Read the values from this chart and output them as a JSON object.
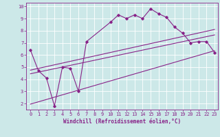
{
  "xlabel": "Windchill (Refroidissement éolien,°C)",
  "bg_color": "#cce8e8",
  "plot_bg_color": "#cce8e8",
  "line_color": "#882288",
  "grid_color": "#aadddd",
  "xlim_min": -0.5,
  "xlim_max": 23.4,
  "ylim_min": 1.5,
  "ylim_max": 10.3,
  "yticks": [
    2,
    3,
    4,
    5,
    6,
    7,
    8,
    9,
    10
  ],
  "xticks": [
    0,
    1,
    2,
    3,
    4,
    5,
    6,
    7,
    8,
    9,
    10,
    11,
    12,
    13,
    14,
    15,
    16,
    17,
    18,
    19,
    20,
    21,
    22,
    23
  ],
  "main_line_x": [
    0,
    1,
    2,
    3,
    4,
    5,
    6,
    7,
    10,
    11,
    12,
    13,
    14,
    15,
    16,
    17,
    18,
    19,
    20,
    21,
    22,
    23
  ],
  "main_line_y": [
    6.4,
    4.7,
    4.1,
    1.8,
    5.0,
    4.9,
    3.0,
    7.1,
    8.7,
    9.3,
    9.0,
    9.3,
    9.0,
    9.8,
    9.4,
    9.1,
    8.3,
    7.8,
    7.0,
    7.1,
    7.1,
    6.2
  ],
  "line1_x": [
    0,
    23
  ],
  "line1_y": [
    4.75,
    8.1
  ],
  "line2_x": [
    0,
    23
  ],
  "line2_y": [
    4.45,
    7.65
  ],
  "line3_x": [
    0,
    23
  ],
  "line3_y": [
    1.95,
    6.35
  ],
  "xlabel_fontsize": 5.5,
  "tick_fontsize": 5.0
}
